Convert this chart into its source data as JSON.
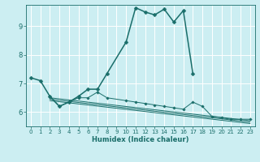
{
  "xlabel": "Humidex (Indice chaleur)",
  "background_color": "#cceef2",
  "line_color": "#1a6e6a",
  "grid_color": "#ffffff",
  "xlim": [
    -0.5,
    23.5
  ],
  "ylim": [
    5.5,
    9.75
  ],
  "x_ticks": [
    0,
    1,
    2,
    3,
    4,
    5,
    6,
    7,
    8,
    9,
    10,
    11,
    12,
    13,
    14,
    15,
    16,
    17,
    18,
    19,
    20,
    21,
    22,
    23
  ],
  "y_ticks": [
    6,
    7,
    8,
    9
  ],
  "series": [
    {
      "x": [
        0,
        1,
        2,
        3,
        4,
        5,
        6,
        7,
        8,
        10,
        11,
        12,
        13,
        14,
        15,
        16,
        17
      ],
      "y": [
        7.2,
        7.1,
        6.55,
        6.2,
        6.35,
        6.55,
        6.8,
        6.8,
        7.35,
        8.45,
        9.65,
        9.5,
        9.4,
        9.6,
        9.15,
        9.55,
        7.35
      ],
      "marker": "D",
      "markersize": 2.5,
      "linewidth": 1.1,
      "zorder": 3
    },
    {
      "x": [
        2,
        3,
        4,
        5,
        6,
        7,
        8,
        10,
        11,
        12,
        13,
        14,
        15,
        16,
        17,
        18,
        19,
        20,
        21,
        22,
        23
      ],
      "y": [
        6.55,
        6.2,
        6.35,
        6.5,
        6.5,
        6.7,
        6.5,
        6.4,
        6.35,
        6.3,
        6.25,
        6.2,
        6.15,
        6.1,
        6.35,
        6.2,
        5.85,
        5.8,
        5.75,
        5.75,
        5.75
      ],
      "marker": "D",
      "markersize": 1.8,
      "linewidth": 0.7,
      "zorder": 2
    },
    {
      "x": [
        2,
        23
      ],
      "y": [
        6.5,
        5.7
      ],
      "marker": null,
      "markersize": 0,
      "linewidth": 0.7,
      "zorder": 2
    },
    {
      "x": [
        2,
        23
      ],
      "y": [
        6.45,
        5.65
      ],
      "marker": null,
      "markersize": 0,
      "linewidth": 0.7,
      "zorder": 2
    },
    {
      "x": [
        2,
        23
      ],
      "y": [
        6.4,
        5.6
      ],
      "marker": null,
      "markersize": 0,
      "linewidth": 0.7,
      "zorder": 2
    }
  ]
}
